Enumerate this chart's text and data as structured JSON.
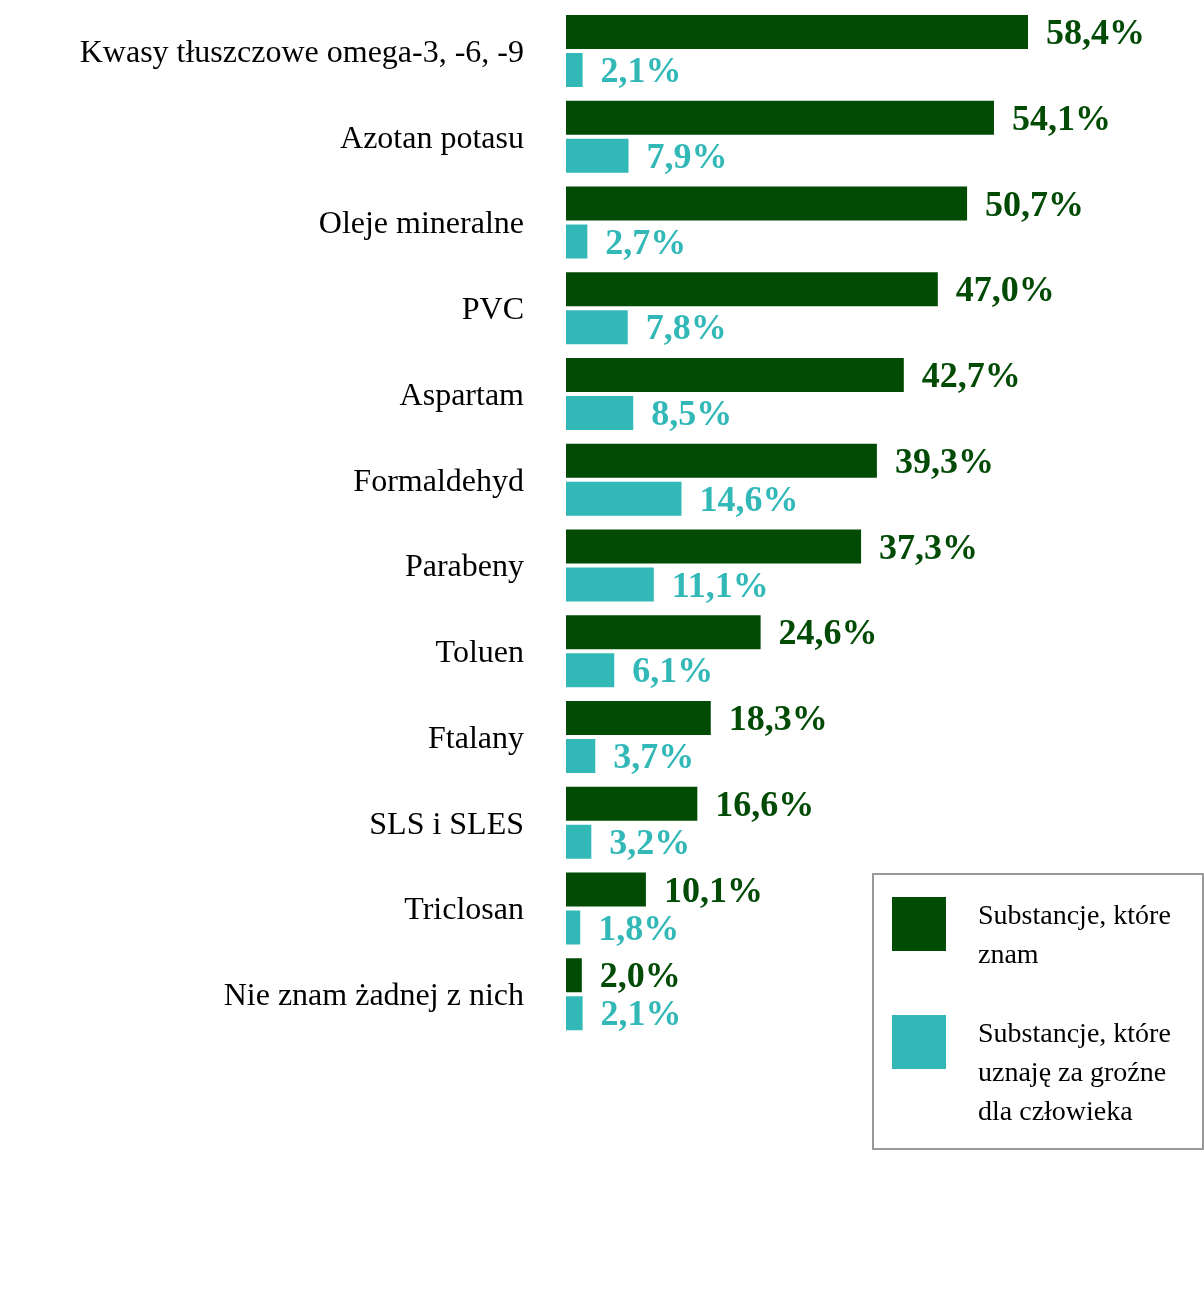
{
  "chart_data": {
    "type": "bar",
    "orientation": "horizontal",
    "categories": [
      "Kwasy tłuszczowe omega-3, -6, -9",
      "Azotan potasu",
      "Oleje mineralne",
      "PVC",
      "Aspartam",
      "Formaldehyd",
      "Parabeny",
      "Toluen",
      "Ftalany",
      "SLS i SLES",
      "Triclosan",
      "Nie znam żadnej z nich"
    ],
    "series": [
      {
        "name": "Substancje, które znam",
        "color": "#024b05",
        "values": [
          58.4,
          54.1,
          50.7,
          47.0,
          42.7,
          39.3,
          37.3,
          24.6,
          18.3,
          16.6,
          10.1,
          2.0
        ],
        "value_labels": [
          "58,4%",
          "54,1%",
          "50,7%",
          "47,0%",
          "42,7%",
          "39,3%",
          "37,3%",
          "24,6%",
          "18,3%",
          "16,6%",
          "10,1%",
          "2,0%"
        ]
      },
      {
        "name": "Substancje, które uznaję za groźne dla człowieka",
        "color": "#33b8b8",
        "values": [
          2.1,
          7.9,
          2.7,
          7.8,
          8.5,
          14.6,
          11.1,
          6.1,
          3.7,
          3.2,
          1.8,
          2.1
        ],
        "value_labels": [
          "2,1%",
          "7,9%",
          "2,7%",
          "7,8%",
          "8,5%",
          "14,6%",
          "11,1%",
          "6,1%",
          "3,7%",
          "3,2%",
          "1,8%",
          "2,1%"
        ]
      }
    ],
    "legend": "bottom right",
    "tick_labels": "y",
    "grid": false
  }
}
